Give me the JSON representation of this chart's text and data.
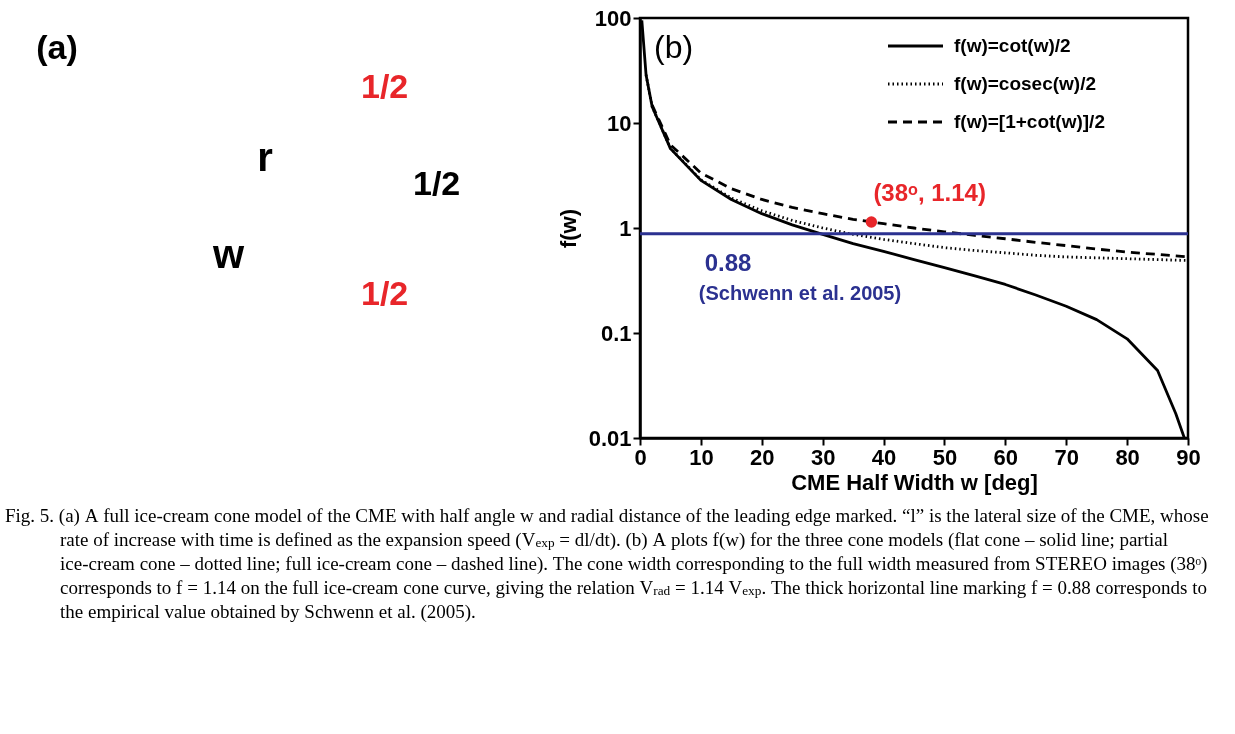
{
  "chart_data": [
    {
      "type": "other",
      "annotations": [
        "(a)",
        "r",
        "1/2",
        "w",
        "1/2",
        "1/2"
      ]
    },
    {
      "type": "line",
      "title": "(b)",
      "xlabel": "CME Half Width w [deg]",
      "ylabel": "f(w)",
      "log": true,
      "grid": false,
      "legend": "top right",
      "xlim": [
        0,
        90
      ],
      "xticks": [
        0,
        10,
        20,
        30,
        40,
        50,
        60,
        70,
        80,
        90
      ],
      "ylim": [
        0.01,
        100
      ],
      "yticks": [
        0.01,
        0.1,
        1,
        10,
        100
      ],
      "series": [
        {
          "name": "f(w)=cot(w)/2",
          "color": "#000000",
          "line_style": "solid",
          "x": [
            0.3,
            1,
            2,
            5,
            10,
            15,
            20,
            25,
            30,
            35,
            40,
            45,
            50,
            55,
            60,
            65,
            70,
            75,
            80,
            85,
            88,
            89.4
          ],
          "values": [
            95,
            28.6,
            14.3,
            5.7,
            2.84,
            1.87,
            1.37,
            1.07,
            0.87,
            0.71,
            0.6,
            0.5,
            0.42,
            0.35,
            0.29,
            0.23,
            0.18,
            0.134,
            0.088,
            0.044,
            0.017,
            0.01
          ]
        },
        {
          "name": "f(w)=cosec(w)/2",
          "color": "#000000",
          "line_style": "dotted",
          "x": [
            1,
            2,
            5,
            10,
            15,
            20,
            25,
            30,
            35,
            40,
            45,
            50,
            55,
            60,
            65,
            70,
            75,
            80,
            85,
            90
          ],
          "values": [
            28.6,
            14.3,
            5.74,
            2.88,
            1.93,
            1.46,
            1.18,
            1.0,
            0.87,
            0.78,
            0.71,
            0.65,
            0.61,
            0.58,
            0.55,
            0.53,
            0.52,
            0.51,
            0.5,
            0.49
          ]
        },
        {
          "name": "f(w)=[1+cot(w)]/2",
          "color": "#000000",
          "line_style": "dashed",
          "x": [
            2,
            5,
            10,
            15,
            20,
            25,
            30,
            35,
            40,
            45,
            50,
            55,
            60,
            65,
            70,
            75,
            80,
            85,
            90
          ],
          "values": [
            14.8,
            6.2,
            3.34,
            2.37,
            1.87,
            1.57,
            1.37,
            1.21,
            1.1,
            1.0,
            0.92,
            0.85,
            0.79,
            0.73,
            0.68,
            0.63,
            0.59,
            0.56,
            0.53
          ]
        },
        {
          "type": "scatter",
          "color": "#e8262a",
          "marker": "circle",
          "x": [
            38
          ],
          "values": [
            1.14
          ]
        }
      ],
      "ref_lines": [
        {
          "axis": "y",
          "value": 0.88,
          "label": "0.88",
          "color": "#2b3190"
        }
      ],
      "annotations": [
        {
          "text": "(38ᵒ, 1.14)",
          "x": 38,
          "y": 1.14
        },
        "(Schwenn et al. 2005)",
        "Fig. 5. (a) A full ice-cream cone model of the CME with half angle w and radial distance of the leading edge marked. “l” is the lateral size of the CME, whose rate of increase with time is defined as the expansion speed (V$_{exp}$ = dl/dt). (b) A plots f(w) for the three cone models (flat cone – solid line; partial ice-cream cone – dotted line; full ice-cream cone – dashed line). The cone width corresponding to the full width measured from STEREO images (38ᵒ) corresponds to f = 1.14 on the full ice-cream cone curve, giving the relation V$_{rad}$ = 1.14 V$_{exp}$. The thick horizontal line marking f = 0.88 corresponds to the empirical value obtained by Schwenn et al. (2005)."
      ]
    }
  ]
}
